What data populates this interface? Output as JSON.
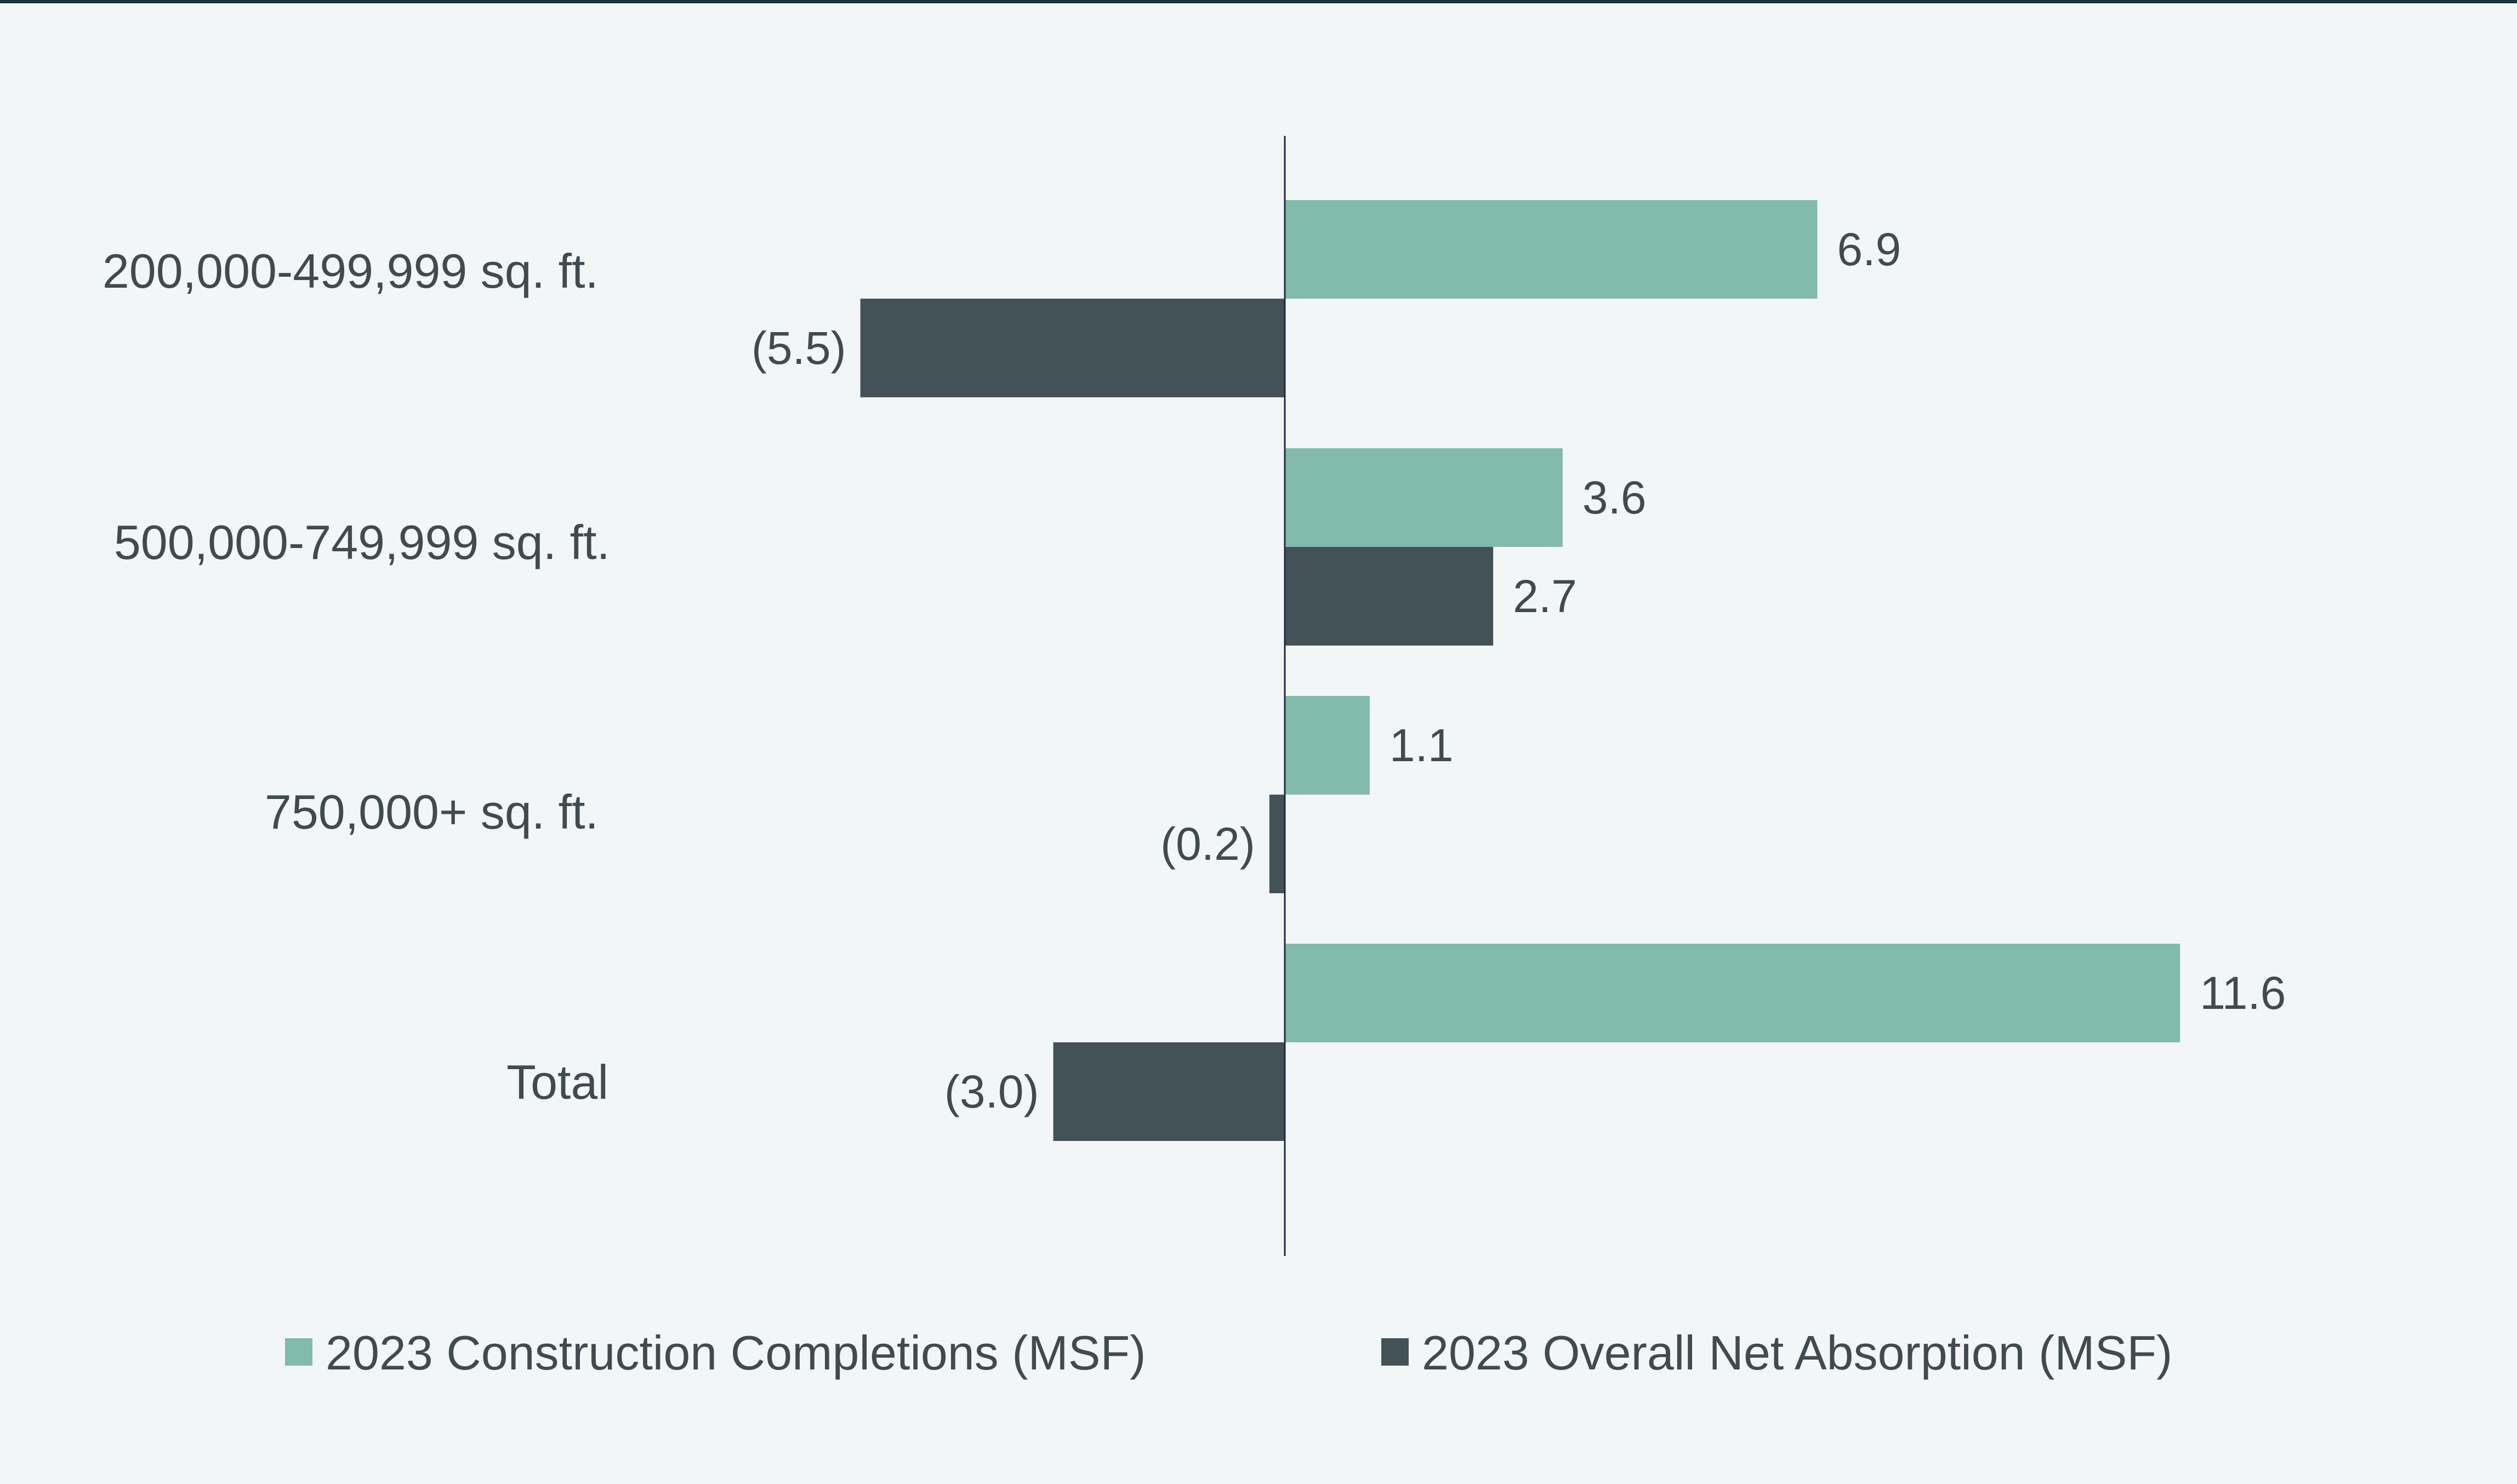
{
  "colors": {
    "completions": "#82baab",
    "absorption": "#435256",
    "axis": "#1e2a4a",
    "text": "#414b4f",
    "background": "#f2f6f6"
  },
  "chart_data": {
    "type": "bar",
    "orientation": "horizontal",
    "title": "",
    "xlabel": "",
    "ylabel": "",
    "grid": false,
    "legend_position": "bottom",
    "categories": [
      "200,000-499,999 sq. ft.",
      "500,000-749,999 sq. ft.",
      "750,000+ sq. ft.",
      "Total"
    ],
    "series": [
      {
        "name": "2023 Construction Completions (MSF)",
        "values": [
          6.9,
          3.6,
          1.1,
          11.6
        ],
        "labels": [
          "6.9",
          "3.6",
          "1.1",
          "11.6"
        ]
      },
      {
        "name": "2023 Overall Net Absorption (MSF)",
        "values": [
          -5.5,
          2.7,
          -0.2,
          -3.0
        ],
        "labels": [
          "(5.5)",
          "2.7",
          "(0.2)",
          "(3.0)"
        ]
      }
    ]
  }
}
